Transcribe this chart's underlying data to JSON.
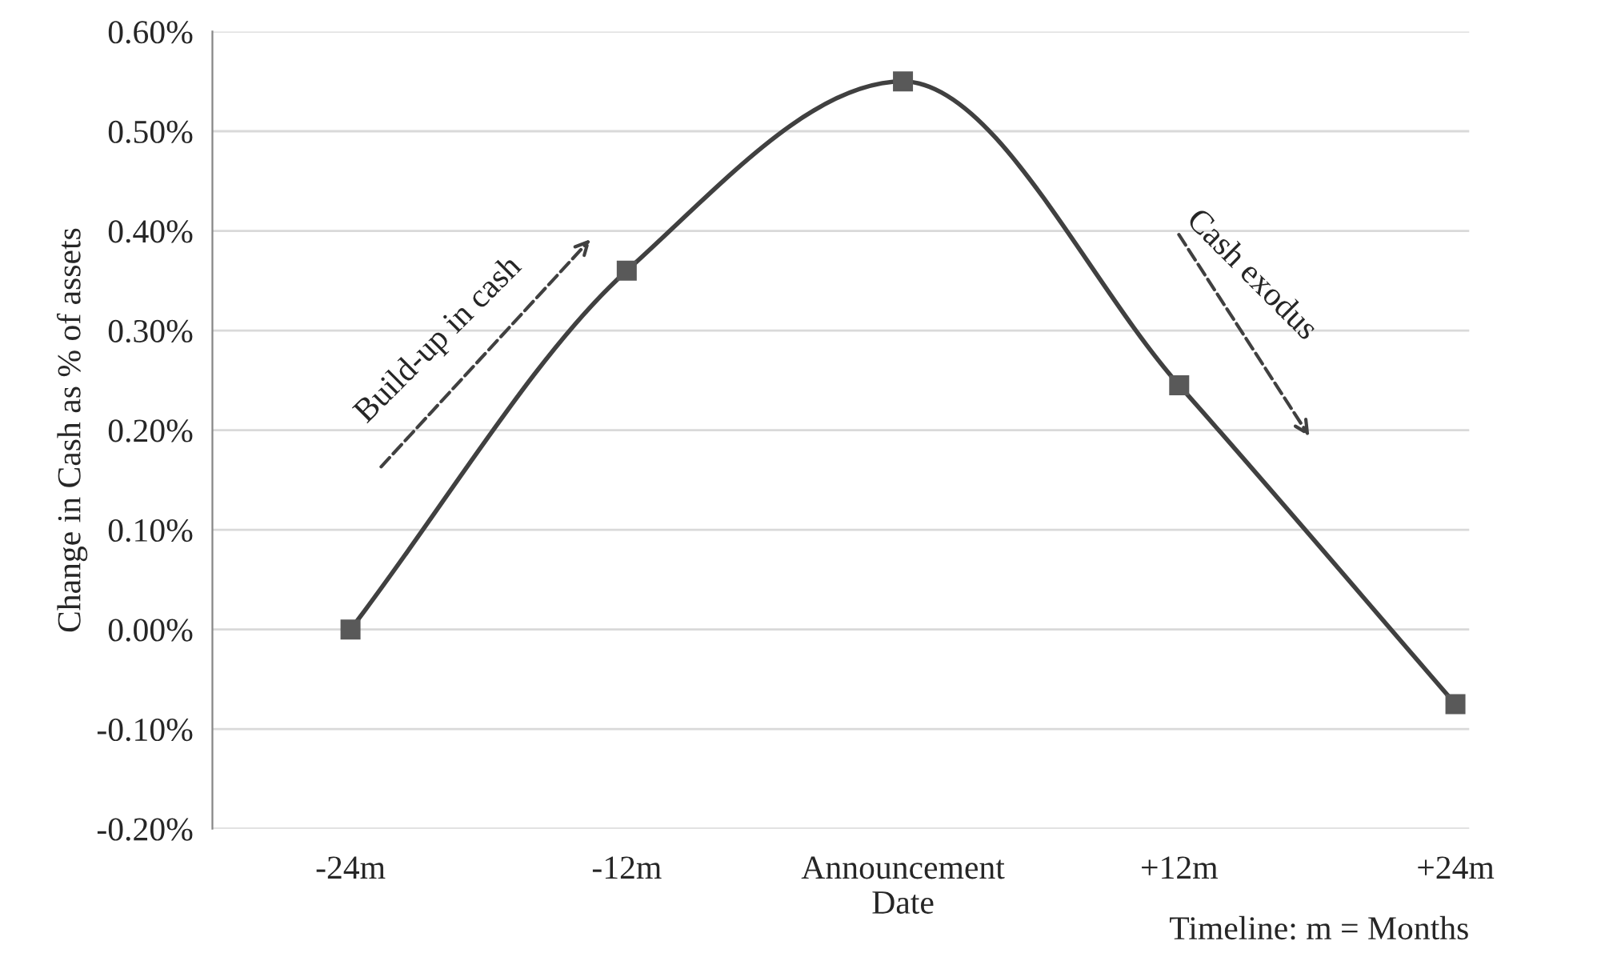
{
  "chart_data": {
    "type": "line",
    "ylabel": "Change in Cash as % of assets",
    "xlabel": "Timeline: m = Months",
    "categories": [
      "-24m",
      "-12m",
      "Announcement\nDate",
      "+12m",
      "+24m"
    ],
    "series": [
      {
        "color": "#404040",
        "values": [
          0.0,
          0.36,
          0.55,
          0.245,
          -0.075
        ]
      }
    ],
    "marker": "square",
    "line_style": "solid",
    "grid": "y",
    "ylim": [
      -0.2,
      0.6
    ],
    "yticks": [
      {
        "value": -0.2,
        "label": "-0.20%"
      },
      {
        "value": -0.1,
        "label": "-0.10%"
      },
      {
        "value": 0,
        "label": "0.00%"
      },
      {
        "value": 0.1,
        "label": "0.10%"
      },
      {
        "value": 0.2,
        "label": "0.20%"
      },
      {
        "value": 0.3,
        "label": "0.30%"
      },
      {
        "value": 0.4,
        "label": "0.40%"
      },
      {
        "value": 0.5,
        "label": "0.50%"
      },
      {
        "value": 0.6,
        "label": "0.60%"
      }
    ],
    "annotations": [
      "Build-up in cash",
      "Cash exodus"
    ]
  }
}
